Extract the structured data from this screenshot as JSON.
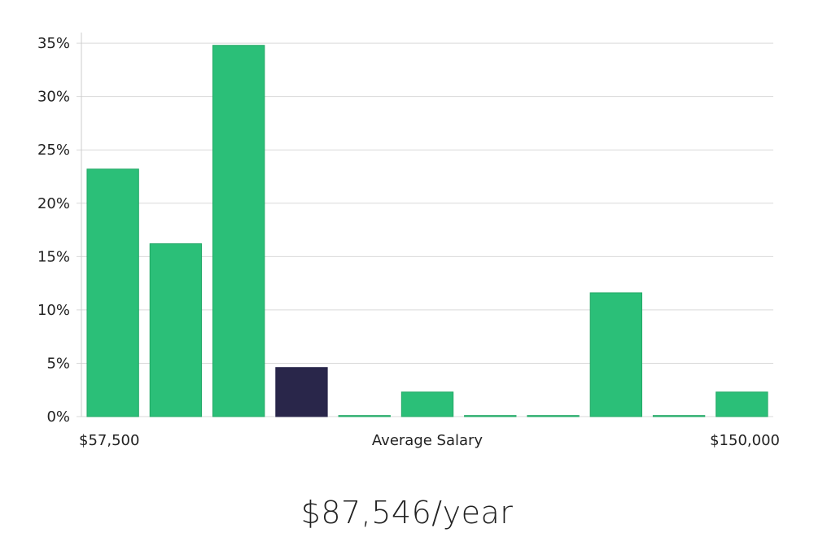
{
  "chart_data": {
    "type": "bar",
    "title": "",
    "xlabel": "Average Salary",
    "ylabel": "",
    "x_min_label": "$57,500",
    "x_max_label": "$150,000",
    "ylim": [
      0,
      36
    ],
    "yticks": [
      0,
      5,
      10,
      15,
      20,
      25,
      30,
      35
    ],
    "ytick_labels": [
      "0%",
      "5%",
      "10%",
      "15%",
      "20%",
      "25%",
      "30%",
      "35%"
    ],
    "values": [
      23.2,
      16.2,
      34.8,
      4.6,
      0.1,
      2.3,
      0.1,
      0.1,
      11.6,
      0.1,
      2.3
    ],
    "highlight_index": 3,
    "grid": true
  },
  "colors": {
    "bar": "#2bbf78",
    "bar_stroke": "#23a866",
    "highlight": "#29264a",
    "grid": "#d9d9d9",
    "axis": "#cccccc"
  },
  "salary": {
    "text": "$87,546/year"
  }
}
